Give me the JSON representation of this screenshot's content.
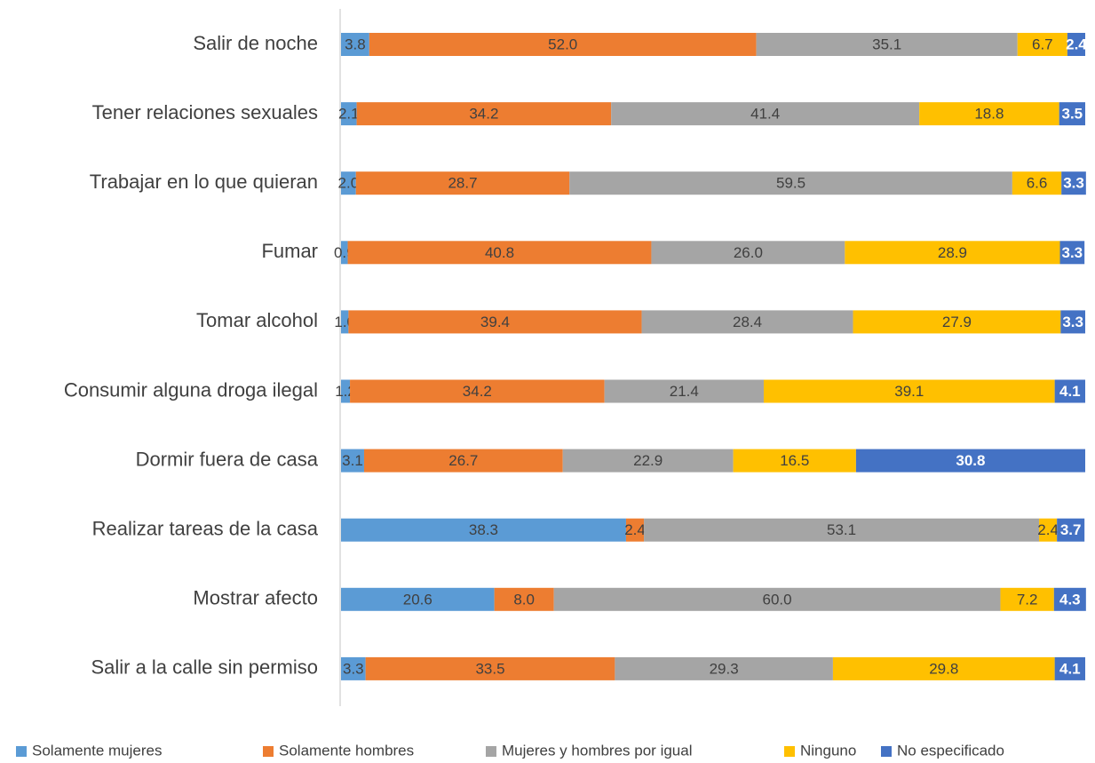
{
  "chart_data": {
    "type": "stacked_barh",
    "categories": [
      "Salir de noche",
      "Tener relaciones sexuales",
      "Trabajar en lo que quieran",
      "Fumar",
      "Tomar alcohol",
      "Consumir alguna droga ilegal",
      "Dormir fuera de casa",
      "Realizar tareas de la casa",
      "Mostrar afecto",
      "Salir a la calle sin permiso"
    ],
    "series": [
      {
        "name": "Solamente mujeres",
        "color": "#5b9bd5",
        "values": [
          3.8,
          2.1,
          2.0,
          0.9,
          1.0,
          1.2,
          3.1,
          38.3,
          20.6,
          3.3
        ],
        "value_labels": [
          "3.8",
          "2.1",
          "2.0",
          "0.9",
          "1.0",
          "1.2",
          "3.1",
          "38.3",
          "20.6",
          "3.3"
        ]
      },
      {
        "name": "Solamente hombres",
        "color": "#ed7d31",
        "values": [
          52.0,
          34.2,
          28.7,
          40.8,
          39.4,
          34.2,
          26.7,
          2.4,
          8.0,
          33.5
        ],
        "value_labels": [
          "52.0",
          "34.2",
          "28.7",
          "40.8",
          "39.4",
          "34.2",
          "26.7",
          "2.4",
          "8.0",
          "33.5"
        ]
      },
      {
        "name": "Mujeres y hombres por igual",
        "color": "#a5a5a5",
        "values": [
          35.1,
          41.4,
          59.5,
          26.0,
          28.4,
          21.4,
          22.9,
          53.1,
          60.0,
          29.3
        ],
        "value_labels": [
          "35.1",
          "41.4",
          "59.5",
          "26.0",
          "28.4",
          "21.4",
          "22.9",
          "53.1",
          "60.0",
          "29.3"
        ]
      },
      {
        "name": "Ninguno",
        "color": "#ffc000",
        "values": [
          6.7,
          18.8,
          6.6,
          28.9,
          27.9,
          39.1,
          16.5,
          2.4,
          7.2,
          29.8
        ],
        "value_labels": [
          "6.7",
          "18.8",
          "6.6",
          "28.9",
          "27.9",
          "39.1",
          "16.5",
          "2.4",
          "7.2",
          "29.8"
        ]
      },
      {
        "name": "No especificado",
        "color": "#4472c4",
        "values": [
          2.4,
          3.5,
          3.3,
          3.3,
          3.3,
          4.1,
          30.8,
          3.7,
          4.3,
          4.1
        ],
        "value_labels": [
          "2.4",
          "3.5",
          "3.3",
          "3.3",
          "3.3",
          "4.1",
          "30.8",
          "3.7",
          "4.3",
          "4.1"
        ]
      }
    ],
    "xlim": [
      0,
      100
    ],
    "legend": "bottom"
  }
}
